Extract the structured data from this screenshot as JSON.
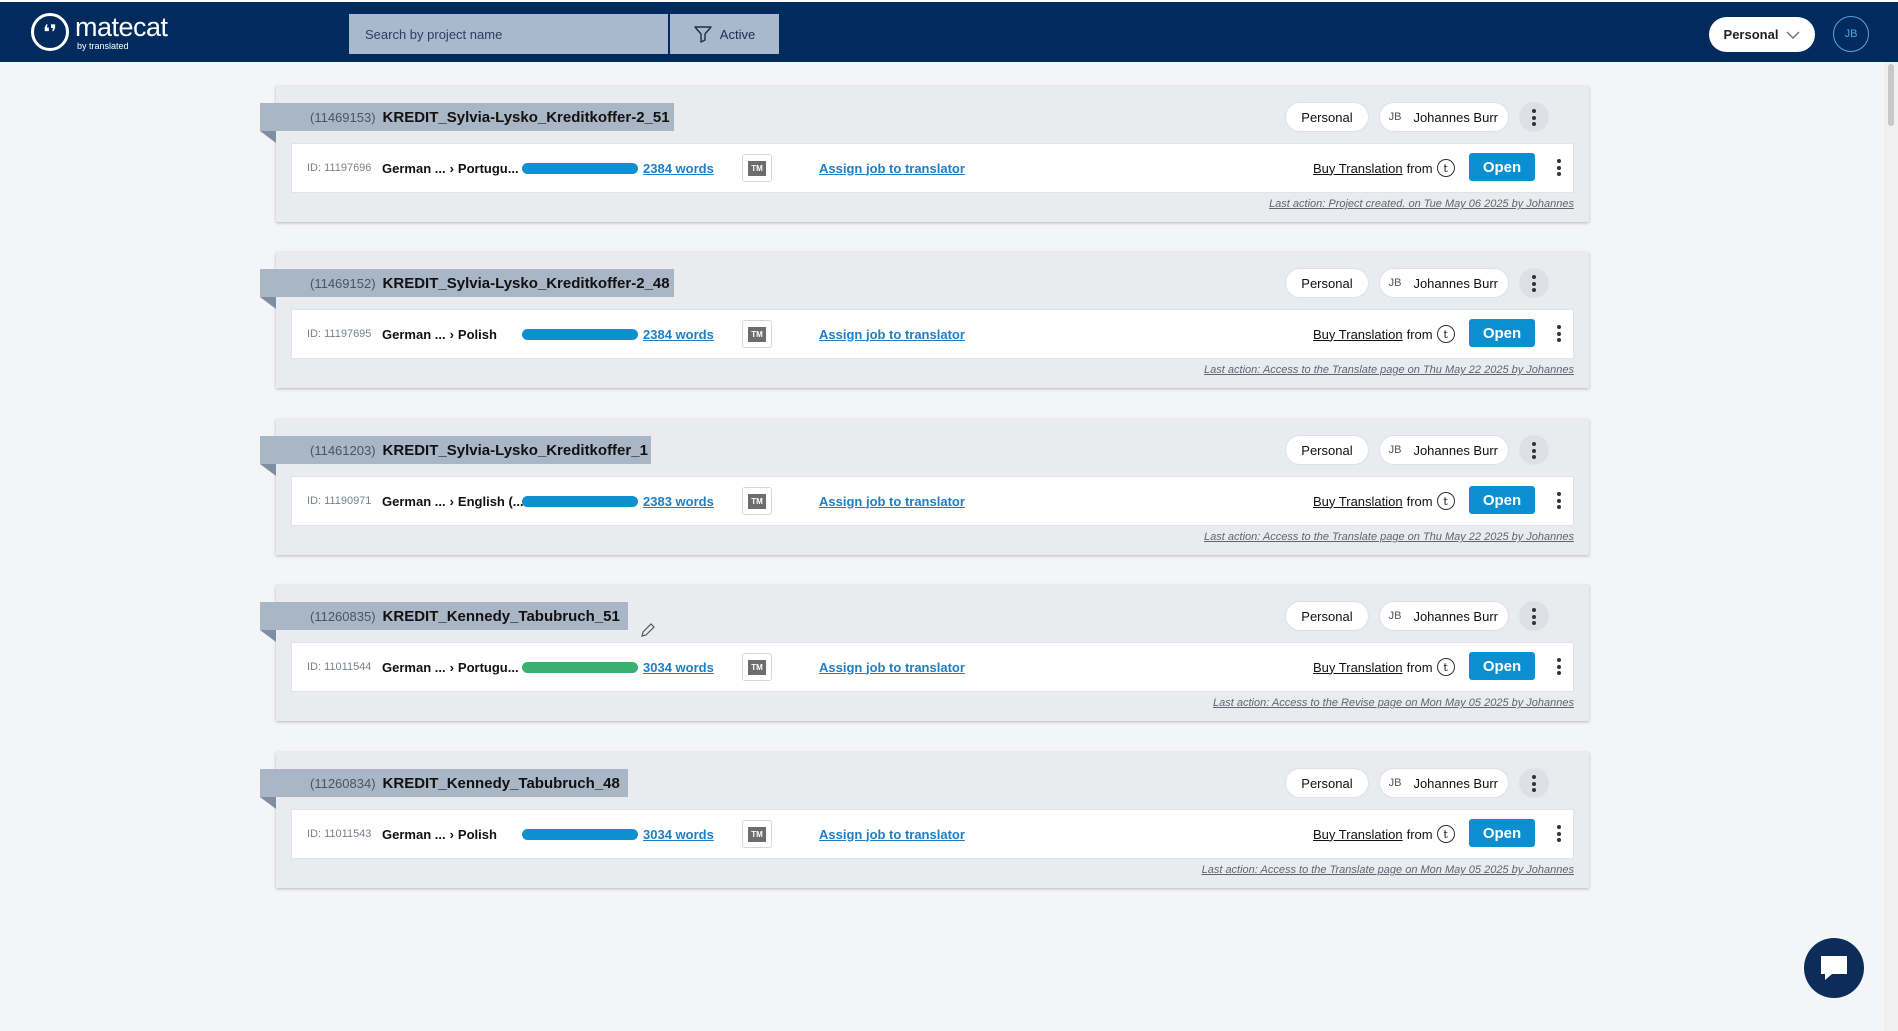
{
  "header": {
    "logo_name": "matecat",
    "logo_sub": "by translated",
    "search_placeholder": "Search by project name",
    "filter_label": "Active",
    "team_select": "Personal",
    "user_initials": "JB"
  },
  "projects": [
    {
      "id": "(11469153)",
      "name": "KREDIT_Sylvia-Lysko_Kreditkoffer-2_51",
      "team": "Personal",
      "owner_initials": "JB",
      "owner_name": "Johannes Burr",
      "job": {
        "id": "ID: 11197696",
        "source": "German ...",
        "target": "Portugu...",
        "progress_color": "#0e8fd0",
        "words": "2384 words",
        "tm": "TM",
        "assign": "Assign job to translator",
        "buy": "Buy Translation",
        "from": "from",
        "open": "Open"
      },
      "last_action": "Last action: Project created. on Tue May 06 2025 by Johannes"
    },
    {
      "id": "(11469152)",
      "name": "KREDIT_Sylvia-Lysko_Kreditkoffer-2_48",
      "team": "Personal",
      "owner_initials": "JB",
      "owner_name": "Johannes Burr",
      "job": {
        "id": "ID: 11197695",
        "source": "German ...",
        "target": "Polish",
        "progress_color": "#0e8fd0",
        "words": "2384 words",
        "tm": "TM",
        "assign": "Assign job to translator",
        "buy": "Buy Translation",
        "from": "from",
        "open": "Open"
      },
      "last_action": "Last action: Access to the Translate page on Thu May 22 2025 by Johannes"
    },
    {
      "id": "(11461203)",
      "name": "KREDIT_Sylvia-Lysko_Kreditkoffer_1",
      "team": "Personal",
      "owner_initials": "JB",
      "owner_name": "Johannes Burr",
      "job": {
        "id": "ID: 11190971",
        "source": "German ...",
        "target": "English (...",
        "progress_color": "#0e8fd0",
        "words": "2383 words",
        "tm": "TM",
        "assign": "Assign job to translator",
        "buy": "Buy Translation",
        "from": "from",
        "open": "Open"
      },
      "last_action": "Last action: Access to the Translate page on Thu May 22 2025 by Johannes"
    },
    {
      "id": "(11260835)",
      "name": "KREDIT_Kennedy_Tabubruch_51",
      "team": "Personal",
      "owner_initials": "JB",
      "owner_name": "Johannes Burr",
      "job": {
        "id": "ID: 11011544",
        "source": "German ...",
        "target": "Portugu...",
        "progress_color": "#3ab070",
        "words": "3034 words",
        "tm": "TM",
        "assign": "Assign job to translator",
        "buy": "Buy Translation",
        "from": "from",
        "open": "Open"
      },
      "last_action": "Last action: Access to the Revise page on Mon May 05 2025 by Johannes"
    },
    {
      "id": "(11260834)",
      "name": "KREDIT_Kennedy_Tabubruch_48",
      "team": "Personal",
      "owner_initials": "JB",
      "owner_name": "Johannes Burr",
      "job": {
        "id": "ID: 11011543",
        "source": "German ...",
        "target": "Polish",
        "progress_color": "#0e8fd0",
        "words": "3034 words",
        "tm": "TM",
        "assign": "Assign job to translator",
        "buy": "Buy Translation",
        "from": "from",
        "open": "Open"
      },
      "last_action": "Last action: Access to the Translate page on Mon May 05 2025 by Johannes"
    }
  ]
}
